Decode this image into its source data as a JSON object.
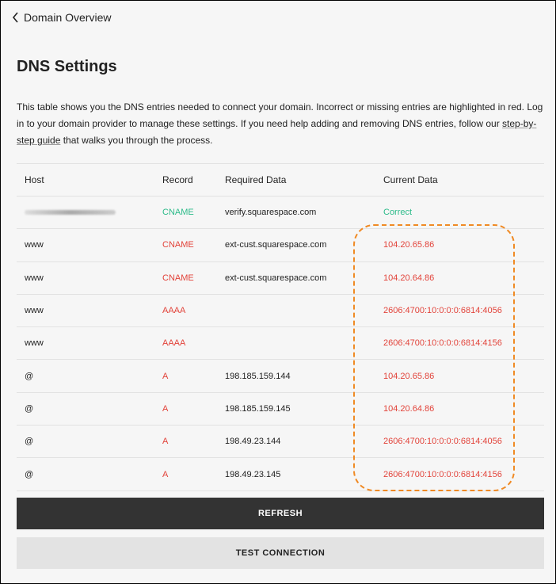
{
  "nav": {
    "back_label": "Domain Overview"
  },
  "page": {
    "title": "DNS Settings",
    "description_before": "This table shows you the DNS entries needed to connect your domain. Incorrect or missing entries are highlighted in red. Log in to your domain provider to manage these settings. If you need help adding and removing DNS entries, follow our ",
    "link_text": "step-by-step guide",
    "description_after": " that walks you through the process."
  },
  "table": {
    "headers": [
      "Host",
      "Record",
      "Required Data",
      "Current Data"
    ],
    "rows": [
      {
        "host": "",
        "host_blurred": true,
        "record": "CNAME",
        "required": "verify.squarespace.com",
        "current": "Correct",
        "status": "ok"
      },
      {
        "host": "www",
        "record": "CNAME",
        "required": "ext-cust.squarespace.com",
        "current": "104.20.65.86",
        "status": "bad"
      },
      {
        "host": "www",
        "record": "CNAME",
        "required": "ext-cust.squarespace.com",
        "current": "104.20.64.86",
        "status": "bad"
      },
      {
        "host": "www",
        "record": "AAAA",
        "required": "",
        "current": "2606:4700:10:0:0:0:6814:4056",
        "status": "bad"
      },
      {
        "host": "www",
        "record": "AAAA",
        "required": "",
        "current": "2606:4700:10:0:0:0:6814:4156",
        "status": "bad"
      },
      {
        "host": "@",
        "record": "A",
        "required": "198.185.159.144",
        "current": "104.20.65.86",
        "status": "bad"
      },
      {
        "host": "@",
        "record": "A",
        "required": "198.185.159.145",
        "current": "104.20.64.86",
        "status": "bad"
      },
      {
        "host": "@",
        "record": "A",
        "required": "198.49.23.144",
        "current": "2606:4700:10:0:0:0:6814:4056",
        "status": "bad"
      },
      {
        "host": "@",
        "record": "A",
        "required": "198.49.23.145",
        "current": "2606:4700:10:0:0:0:6814:4156",
        "status": "bad"
      }
    ]
  },
  "buttons": {
    "refresh": "REFRESH",
    "test": "TEST CONNECTION"
  },
  "colors": {
    "ok": "#2dbb8a",
    "bad": "#e2433a",
    "highlight": "#f08a24"
  }
}
